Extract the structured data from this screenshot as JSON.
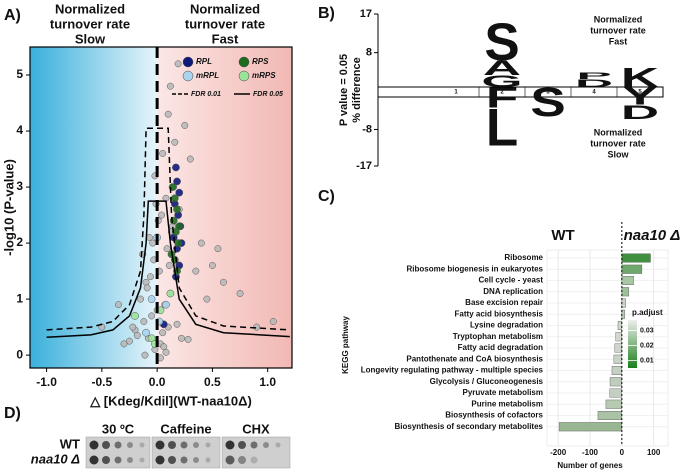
{
  "chart_data": [
    {
      "type": "scatter",
      "panel_label": "A)",
      "annotations": [
        [
          "Normalized",
          "turnover rate",
          "Slow"
        ],
        [
          "Normalized",
          "turnover rate",
          "Fast"
        ]
      ],
      "xlabel": "△ [Kdeg/Kdil](WT-naa10Δ)",
      "ylabel": "-log10 (P-value)",
      "xlim": [
        -1.15,
        1.22
      ],
      "ylim": [
        -0.23,
        5.5
      ],
      "xticks": [
        {
          "value": -1,
          "label": "-1.0"
        },
        -0.5,
        {
          "value": 0,
          "label": "0.0"
        },
        0.5,
        {
          "value": 1,
          "label": "1.0"
        }
      ],
      "yticks": [
        0,
        1,
        2,
        3,
        4,
        5
      ],
      "vline": 0,
      "background": {
        "left": "#3ab0dc",
        "right": "#f2b8b3"
      },
      "series": [
        {
          "color": "#b9b9b9",
          "x": [
            -0.02,
            0.03,
            -0.08,
            0.05,
            0.1,
            -0.12,
            -0.05,
            0.0,
            0.07,
            -0.15,
            0.12,
            -0.2,
            0.18,
            -0.1,
            0.02,
            -0.03,
            0.09,
            -0.07,
            0.14,
            -0.18,
            0.04,
            -0.01,
            0.06,
            -0.09,
            0.11,
            -0.25,
            0.22,
            -0.3,
            0.28,
            -0.04,
            0.01,
            0.08,
            -0.06,
            0.15,
            -0.13,
            0.2,
            -0.22,
            0.35,
            -0.35,
            0.45,
            0.6,
            0.75,
            0.9,
            1.05,
            -0.5,
            0.3,
            0.25,
            0.4,
            0.1,
            0.12,
            -0.02,
            0.05,
            0.16,
            0.5,
            0.19,
            0.08,
            -0.11,
            0.03,
            0.13,
            0.55
          ],
          "y": [
            0.1,
            0.2,
            0.3,
            0.4,
            0.5,
            0.6,
            0.7,
            0.8,
            0.9,
            1.0,
            1.1,
            0.45,
            0.55,
            1.3,
            1.5,
            1.7,
            1.9,
            2.1,
            2.3,
            0.35,
            2.5,
            2.7,
            0.15,
            1.2,
            1.6,
            0.25,
            0.3,
            0.2,
            0.28,
            2.0,
            2.4,
            2.8,
            1.4,
            3.0,
            1.8,
            2.6,
            0.5,
            1.5,
            0.9,
            1.0,
            1.3,
            1.1,
            0.5,
            0.6,
            0.5,
            3.5,
            4.1,
            2.0,
            4.3,
            4.8,
            3.2,
            3.6,
            3.8,
            1.6,
            5.2,
            0.05,
            0.0,
            -0.05,
            2.2,
            1.9
          ]
        },
        {
          "name": "RPL",
          "color": "#0d1a7a",
          "x": [
            0.17,
            0.18,
            0.2,
            0.16,
            0.19,
            0.21,
            0.15,
            0.18,
            0.2,
            0.17,
            0.06,
            0.22
          ],
          "y": [
            3.35,
            3.1,
            2.9,
            2.7,
            2.5,
            2.3,
            2.1,
            1.9,
            1.6,
            1.4,
            0.55,
            2.0
          ]
        },
        {
          "name": "RPS",
          "color": "#1d6b1d",
          "x": [
            0.14,
            0.16,
            0.18,
            0.15,
            0.17,
            0.19,
            0.13,
            0.16,
            0.18,
            0.2
          ],
          "y": [
            3.0,
            2.8,
            2.6,
            2.4,
            2.2,
            2.0,
            1.8,
            1.7,
            1.5,
            2.3
          ]
        },
        {
          "name": "mRPL",
          "color": "#a9d3ee",
          "x": [
            -0.05,
            0.02,
            -0.1,
            0.08,
            0.0
          ],
          "y": [
            1.0,
            0.6,
            0.4,
            0.9,
            2.1
          ]
        },
        {
          "name": "mRPS",
          "color": "#9be39b",
          "x": [
            -0.2,
            -0.05,
            0.03,
            0.12,
            -0.02
          ],
          "y": [
            0.7,
            0.3,
            0.8,
            1.1,
            0.2
          ]
        }
      ],
      "lines": [
        {
          "name": "FDR 0.01",
          "dashed": true,
          "x": [
            -1.0,
            -0.6,
            -0.4,
            -0.25,
            -0.15,
            -0.12,
            -0.1,
            -0.05,
            0.08,
            0.1,
            0.13,
            0.2,
            0.35,
            0.6,
            1.2
          ],
          "y": [
            0.45,
            0.5,
            0.6,
            0.9,
            1.5,
            2.5,
            4.05,
            4.05,
            4.05,
            4.05,
            2.5,
            1.2,
            0.7,
            0.52,
            0.45
          ]
        },
        {
          "name": "FDR 0.05",
          "dashed": false,
          "x": [
            -1.0,
            -0.6,
            -0.4,
            -0.25,
            -0.15,
            -0.1,
            -0.08,
            -0.05,
            0.05,
            0.08,
            0.12,
            0.2,
            0.35,
            0.6,
            1.2
          ],
          "y": [
            0.32,
            0.36,
            0.45,
            0.7,
            1.2,
            2.0,
            2.75,
            2.75,
            2.75,
            2.75,
            2.0,
            1.0,
            0.55,
            0.4,
            0.33
          ]
        }
      ]
    },
    {
      "type": "logo",
      "panel_label": "B)",
      "ylabel": [
        "P value = 0.05",
        "% difference"
      ],
      "ylim": [
        -17,
        17
      ],
      "yticks": [
        17,
        8,
        -8,
        -17
      ],
      "positions": [
        "1",
        "2",
        "3",
        "4",
        "5"
      ],
      "stacks": [
        {
          "up": [],
          "down": []
        },
        {
          "up": [
            {
              "letter": "G",
              "value": 2.8,
              "color": "#2a9d2a"
            },
            {
              "letter": "A",
              "value": 3.5,
              "color": "#2233cc"
            },
            {
              "letter": "S",
              "value": 8.8,
              "color": "#d4861c"
            }
          ],
          "down": [
            {
              "letter": "F",
              "value": -2.6,
              "color": "#a744cc"
            },
            {
              "letter": "L",
              "value": -9.3,
              "color": "#cc2288"
            }
          ]
        },
        {
          "up": [],
          "down": [
            {
              "letter": "S",
              "value": -4.7,
              "color": "#d4861c"
            }
          ]
        },
        {
          "up": [
            {
              "letter": "D",
              "value": 1.9,
              "color": "#7722cc"
            },
            {
              "letter": "P",
              "value": 1.6,
              "color": "#cc2222"
            }
          ],
          "down": []
        },
        {
          "up": [
            {
              "letter": "K",
              "value": 4.7,
              "color": "#cc2288"
            }
          ],
          "down": [
            {
              "letter": "Y",
              "value": -1.9,
              "color": "#8cc63f"
            },
            {
              "letter": "D",
              "value": -3.5,
              "color": "#7722cc"
            }
          ]
        }
      ],
      "annotations": [
        [
          "Normalized",
          "turnover rate",
          "Fast"
        ],
        [
          "Normalized",
          "turnover rate",
          "Slow"
        ]
      ]
    },
    {
      "type": "hbar",
      "panel_label": "C)",
      "labels": [
        "WT",
        "naa10 Δ"
      ],
      "xlabel": "Number of genes",
      "ylabel": "KEGG pathway",
      "categories": [
        "Ribosome",
        "Ribosome biogenesis in eukaryotes",
        "Cell cycle - yeast",
        "DNA replication",
        "Base excision repair",
        "Fatty acid biosynthesis",
        "Lysine degradation",
        "Tryptophan metabolism",
        "Fatty acid degradation",
        "Pantothenate and CoA biosynthesis",
        "Longevity regulating pathway - multiple species",
        "Glycolysis / Gluconeogenesis",
        "Pyruvate metabolism",
        "Purine metabolism",
        "Biosynthesis of cofactors",
        "Biosynthesis of secondary metabolites"
      ],
      "values": [
        90,
        63,
        37,
        22,
        12,
        9,
        -12,
        -19,
        -22,
        -25,
        -31,
        -37,
        -38,
        -50,
        -75,
        -197
      ],
      "colors": [
        "#3f8f3f",
        "#6fa86a",
        "#a8c7a2",
        "#9fbf9a",
        "#c8d6c4",
        "#b8ccb3",
        "#cfd8cc",
        "#d2dad0",
        "#cdd6ca",
        "#c9d3c6",
        "#c4d0c1",
        "#bfcdbb",
        "#c3cfc0",
        "#b6c9b1",
        "#a9c3a4",
        "#99b693"
      ],
      "xlim": [
        -235,
        145
      ],
      "xticks": [
        -200,
        -100,
        0,
        100
      ],
      "vline": 0,
      "grid": true,
      "colorbar": {
        "title": "p.adjust",
        "clim": [
          0.005,
          0.037
        ],
        "ticks": [
          0.03,
          0.02,
          0.01
        ],
        "colors": [
          "#eeeeee",
          "#1a7f1a"
        ]
      }
    }
  ],
  "spot_assay": {
    "panel_label": "D)",
    "conditions": [
      "30 ºC",
      "Caffeine",
      "CHX"
    ],
    "strains": [
      "WT",
      "naa10 Δ"
    ]
  }
}
